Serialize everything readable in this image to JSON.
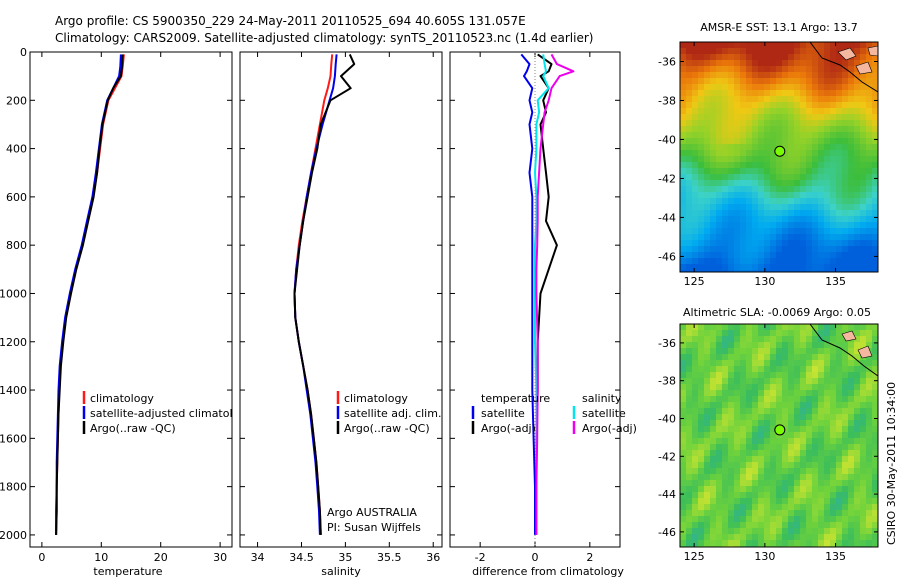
{
  "header": {
    "line1": "Argo profile: CS 5900350_229 24-May-2011 20110525_694 40.605S 131.057E",
    "line2": "Climatology: CARS2009. Satellite-adjusted climatology: synTS_20110523.nc (1.4d earlier)"
  },
  "colors": {
    "climatology": "#ff1a1a",
    "satellite": "#0000ee",
    "argo": "#000000",
    "satellite_diff": "#00e5ee",
    "argo_diff": "#ee00ee",
    "float_marker": "#7cfc00"
  },
  "chart_data": [
    {
      "type": "line",
      "name": "temperature-profile",
      "xlabel": "temperature",
      "ylabel": "",
      "xlim": [
        -2,
        32
      ],
      "ylim": [
        2050,
        0
      ],
      "xticks": [
        "0",
        "10",
        "20",
        "30"
      ],
      "yticks": [
        "0",
        "200",
        "400",
        "600",
        "800",
        "1000",
        "1200",
        "1400",
        "1600",
        "1800",
        "2000"
      ],
      "depth": [
        10,
        60,
        100,
        150,
        200,
        300,
        400,
        500,
        600,
        700,
        800,
        900,
        1000,
        1100,
        1200,
        1300,
        1400,
        1500,
        1600,
        1700,
        1800,
        1900,
        2000
      ],
      "series": [
        {
          "name": "climatology",
          "values": [
            13.8,
            13.6,
            13.4,
            12.3,
            11.2,
            10.3,
            9.8,
            9.3,
            8.6,
            7.7,
            6.8,
            5.7,
            4.8,
            4.0,
            3.5,
            3.1,
            2.9,
            2.8,
            2.7,
            2.6,
            2.5,
            2.5,
            2.4
          ]
        },
        {
          "name": "satellite-adjusted climatology",
          "values": [
            13.3,
            13.2,
            13.0,
            12.0,
            11.0,
            10.1,
            9.6,
            9.1,
            8.5,
            7.6,
            6.7,
            5.6,
            4.7,
            3.9,
            3.4,
            3.0,
            2.8,
            2.7,
            2.6,
            2.5,
            2.5,
            2.4,
            2.4
          ]
        },
        {
          "name": "Argo(..raw -QC)",
          "values": [
            13.6,
            13.5,
            13.3,
            12.0,
            11.1,
            10.2,
            9.7,
            9.3,
            8.7,
            7.8,
            6.9,
            5.8,
            4.9,
            4.1,
            3.6,
            3.2,
            3.0,
            2.8,
            2.7,
            2.6,
            2.5,
            2.5,
            2.4
          ]
        }
      ],
      "legend": {
        "placement": "lower-right",
        "entries": [
          "climatology",
          "satellite-adjusted climatology",
          "Argo(..raw -QC)"
        ]
      }
    },
    {
      "type": "line",
      "name": "salinity-profile",
      "xlabel": "salinity",
      "ylabel": "",
      "xlim": [
        33.8,
        36.1
      ],
      "ylim": [
        2050,
        0
      ],
      "xticks": [
        "34",
        "34.5",
        "35",
        "35.5",
        "36"
      ],
      "depth": [
        10,
        50,
        100,
        150,
        200,
        300,
        400,
        500,
        600,
        700,
        800,
        900,
        1000,
        1100,
        1200,
        1300,
        1400,
        1500,
        1600,
        1700,
        1800,
        1900,
        2000
      ],
      "series": [
        {
          "name": "climatology",
          "values": [
            34.85,
            34.84,
            34.83,
            34.8,
            34.76,
            34.71,
            34.66,
            34.61,
            34.56,
            34.51,
            34.47,
            34.44,
            34.42,
            34.43,
            34.47,
            34.52,
            34.57,
            34.61,
            34.64,
            34.67,
            34.69,
            34.71,
            34.72
          ]
        },
        {
          "name": "satellite adj. clim.",
          "values": [
            34.9,
            34.89,
            34.88,
            34.86,
            34.82,
            34.74,
            34.67,
            34.61,
            34.56,
            34.52,
            34.48,
            34.44,
            34.42,
            34.43,
            34.47,
            34.52,
            34.56,
            34.6,
            34.63,
            34.66,
            34.68,
            34.7,
            34.71
          ]
        },
        {
          "name": "Argo(..raw -QC)",
          "values": [
            35.05,
            35.1,
            34.95,
            35.06,
            34.83,
            34.72,
            34.68,
            34.62,
            34.57,
            34.52,
            34.48,
            34.45,
            34.42,
            34.43,
            34.47,
            34.52,
            34.57,
            34.61,
            34.64,
            34.67,
            34.69,
            34.71,
            34.72
          ]
        }
      ],
      "legend": {
        "placement": "lower-right",
        "entries": [
          "climatology",
          "satellite adj. clim.",
          "Argo(..raw -QC)"
        ]
      },
      "annotation": {
        "line1": "Argo AUSTRALIA",
        "line2": "PI: Susan Wijffels"
      }
    },
    {
      "type": "line",
      "name": "difference-profile",
      "xlabel": "difference from climatology",
      "ylabel": "",
      "xlim": [
        -3.1,
        3.1
      ],
      "ylim": [
        2050,
        0
      ],
      "xticks": [
        "-2",
        "0",
        "2"
      ],
      "depth": [
        10,
        50,
        80,
        100,
        150,
        200,
        250,
        300,
        400,
        500,
        600,
        700,
        800,
        900,
        1000,
        1200,
        1400,
        1600,
        1800,
        2000
      ],
      "series": [
        {
          "name": "temperature satellite",
          "values": [
            -0.5,
            -0.2,
            -0.3,
            -0.4,
            -0.1,
            -0.2,
            -0.1,
            -0.2,
            -0.1,
            -0.2,
            -0.1,
            -0.1,
            -0.1,
            -0.1,
            -0.1,
            -0.1,
            -0.1,
            -0.05,
            0,
            0
          ]
        },
        {
          "name": "temperature Argo(-adj)",
          "values": [
            0.1,
            0.6,
            0.5,
            0.2,
            0.5,
            0.3,
            0.4,
            0.2,
            0.3,
            0.4,
            0.5,
            0.4,
            0.8,
            0.5,
            0.2,
            0.1,
            0.1,
            0.05,
            0.05,
            0.05
          ]
        },
        {
          "name": "salinity satellite",
          "values": [
            0.3,
            0.35,
            0.4,
            0.3,
            0.5,
            0.1,
            0.15,
            0.05,
            0.05,
            0,
            0.05,
            0.05,
            0,
            0,
            0,
            0,
            0.05,
            0.05,
            0.05,
            0.05
          ]
        },
        {
          "name": "salinity Argo(-adj)",
          "values": [
            0.6,
            0.8,
            1.4,
            0.9,
            0.6,
            0.5,
            0.35,
            0.3,
            0.2,
            0.15,
            0.1,
            0.1,
            0.08,
            0.05,
            0.05,
            0.1,
            0.1,
            0.08,
            0.05,
            0.05
          ]
        }
      ],
      "legend": {
        "placement": "lower-right",
        "left_title": "temperature",
        "right_title": "salinity",
        "left_entries": [
          "satellite",
          "Argo(-adj)"
        ],
        "right_entries": [
          "satellite",
          "Argo(-adj)"
        ]
      }
    },
    {
      "type": "heatmap",
      "name": "sst-map",
      "title": "AMSR-E SST: 13.1 Argo: 13.7",
      "xticks": [
        "125",
        "130",
        "135"
      ],
      "yticks": [
        "-36",
        "-38",
        "-40",
        "-42",
        "-44",
        "-46"
      ],
      "xlim": [
        124,
        138
      ],
      "ylim": [
        -46.8,
        -35
      ],
      "float_position": {
        "lon": 131.057,
        "lat": -40.605
      }
    },
    {
      "type": "heatmap",
      "name": "sla-map",
      "title": "Altimetric SLA: -0.0069 Argo: 0.05",
      "xticks": [
        "125",
        "130",
        "135"
      ],
      "yticks": [
        "-36",
        "-38",
        "-40",
        "-42",
        "-44",
        "-46"
      ],
      "xlim": [
        124,
        138
      ],
      "ylim": [
        -46.8,
        -35
      ],
      "float_position": {
        "lon": 131.057,
        "lat": -40.605
      }
    }
  ],
  "footer": {
    "side_label": "CSIRO 30-May-2011 10:34:00"
  }
}
